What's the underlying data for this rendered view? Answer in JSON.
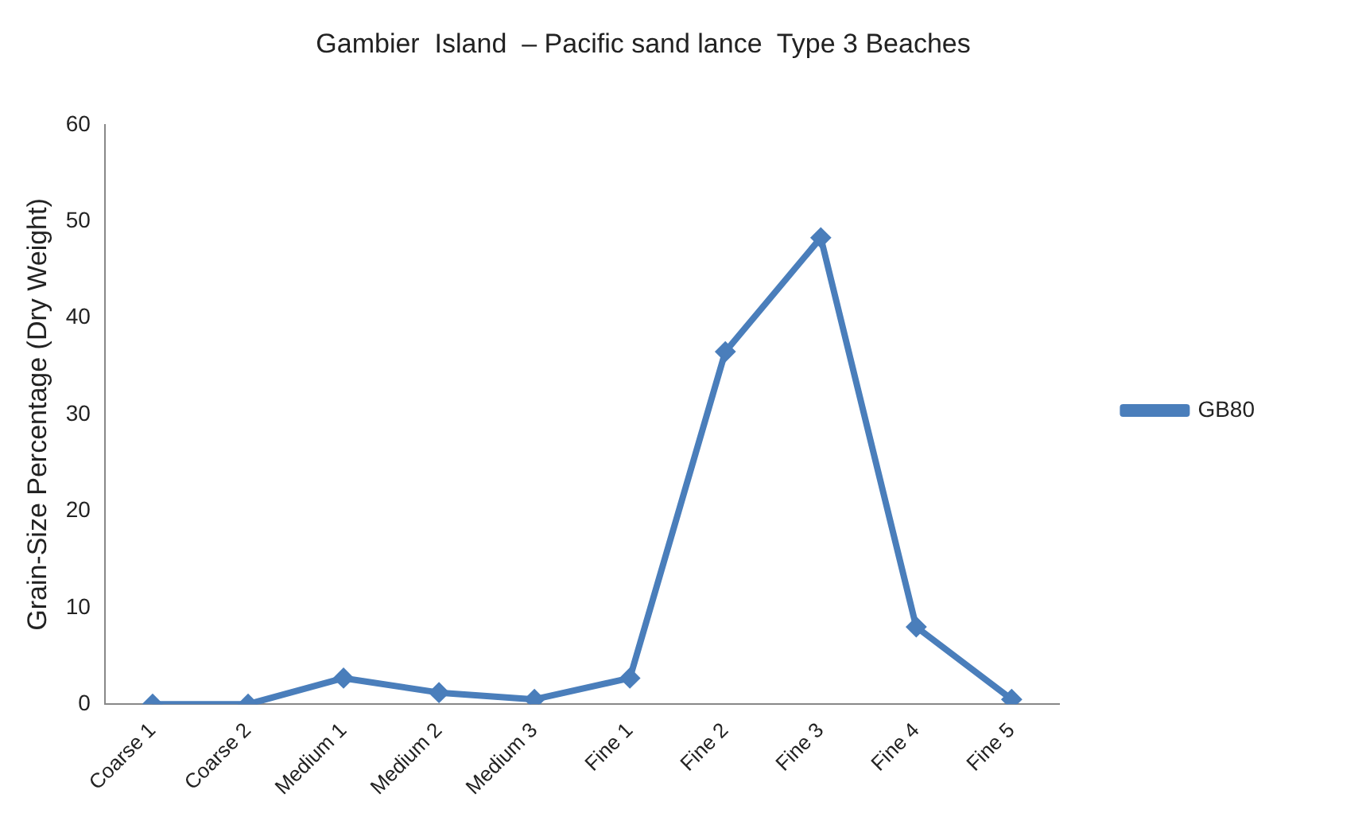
{
  "chart_data": {
    "type": "line",
    "title": "Gambier  Island  – Pacific sand lance  Type 3 Beaches",
    "ylabel": "Grain-Size Percentage (Dry Weight)",
    "categories": [
      "Coarse 1",
      "Coarse 2",
      "Medium 1",
      "Medium 2",
      "Medium 3",
      "Fine 1",
      "Fine 2",
      "Fine 3",
      "Fine 4",
      "Fine 5"
    ],
    "series": [
      {
        "name": "GB80",
        "color": "#4a7ebb",
        "values": [
          0,
          0,
          2.7,
          1.2,
          0.5,
          2.7,
          36.5,
          48.3,
          8.0,
          0.5
        ]
      }
    ],
    "ylim": [
      0,
      60
    ],
    "yticks": [
      0,
      10,
      20,
      30,
      40,
      50,
      60
    ],
    "grid": false,
    "legend": "right",
    "marker": "diamond",
    "line_style": "solid"
  }
}
